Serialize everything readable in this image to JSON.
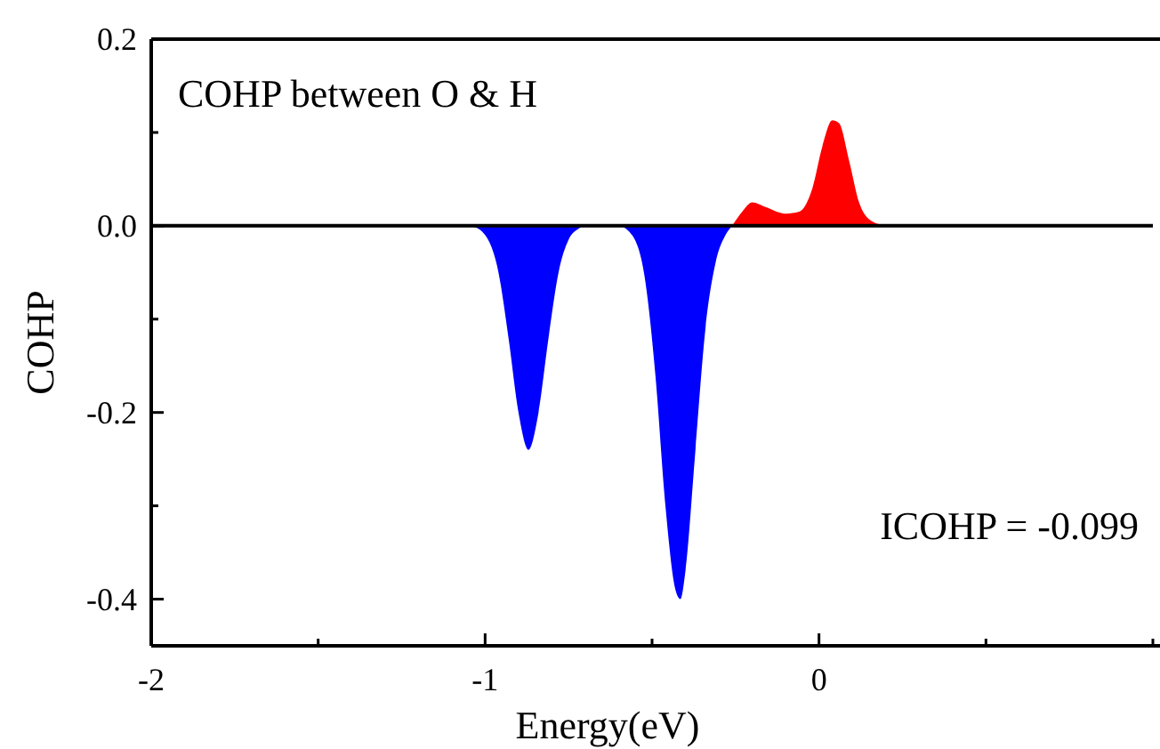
{
  "chart_data": {
    "type": "area",
    "xlabel": "Energy(eV)",
    "ylabel": "COHP",
    "xlim": [
      -2,
      1
    ],
    "ylim": [
      -0.45,
      0.2
    ],
    "xticks": [
      -2,
      {
        "value": -1.5,
        "label": null
      },
      -1,
      {
        "value": -0.5,
        "label": null
      },
      0,
      {
        "value": 0.5,
        "label": null
      },
      {
        "value": 1,
        "label": null
      }
    ],
    "yticks": [
      {
        "value": -0.4,
        "label": "-0.4"
      },
      {
        "value": -0.3,
        "label": null
      },
      {
        "value": -0.2,
        "label": "-0.2"
      },
      {
        "value": -0.1,
        "label": null
      },
      {
        "value": 0,
        "label": "0.0"
      },
      {
        "value": 0.1,
        "label": null
      },
      {
        "value": 0.2,
        "label": "0.2"
      }
    ],
    "series": [
      {
        "color": "#0000ff",
        "x": [
          -1.04,
          -1.0,
          -0.96,
          -0.93,
          -0.9,
          -0.87,
          -0.84,
          -0.81,
          -0.78,
          -0.75,
          -0.72,
          -0.7,
          -0.6,
          -0.56,
          -0.52,
          -0.49,
          -0.46,
          -0.43,
          -0.415,
          -0.4,
          -0.37,
          -0.34,
          -0.31,
          -0.28,
          -0.26
        ],
        "values": [
          0,
          -0.01,
          -0.05,
          -0.12,
          -0.2,
          -0.24,
          -0.2,
          -0.12,
          -0.05,
          -0.015,
          -0.003,
          0,
          0,
          -0.01,
          -0.06,
          -0.16,
          -0.3,
          -0.39,
          -0.4,
          -0.37,
          -0.24,
          -0.11,
          -0.04,
          -0.01,
          0
        ]
      },
      {
        "color": "#ff0000",
        "x": [
          -0.26,
          -0.23,
          -0.2,
          -0.16,
          -0.1,
          -0.06,
          -0.02,
          0.01,
          0.04,
          0.06,
          0.09,
          0.12,
          0.15,
          0.2
        ],
        "values": [
          0,
          0.015,
          0.025,
          0.02,
          0.013,
          0.015,
          0.04,
          0.085,
          0.113,
          0.11,
          0.07,
          0.025,
          0.007,
          0
        ]
      }
    ],
    "ref_lines": [
      {
        "axis": "y",
        "value": 0,
        "color": "#000000"
      }
    ],
    "annotations": [
      "COHP between O & H",
      "ICOHP = -0.099"
    ]
  }
}
